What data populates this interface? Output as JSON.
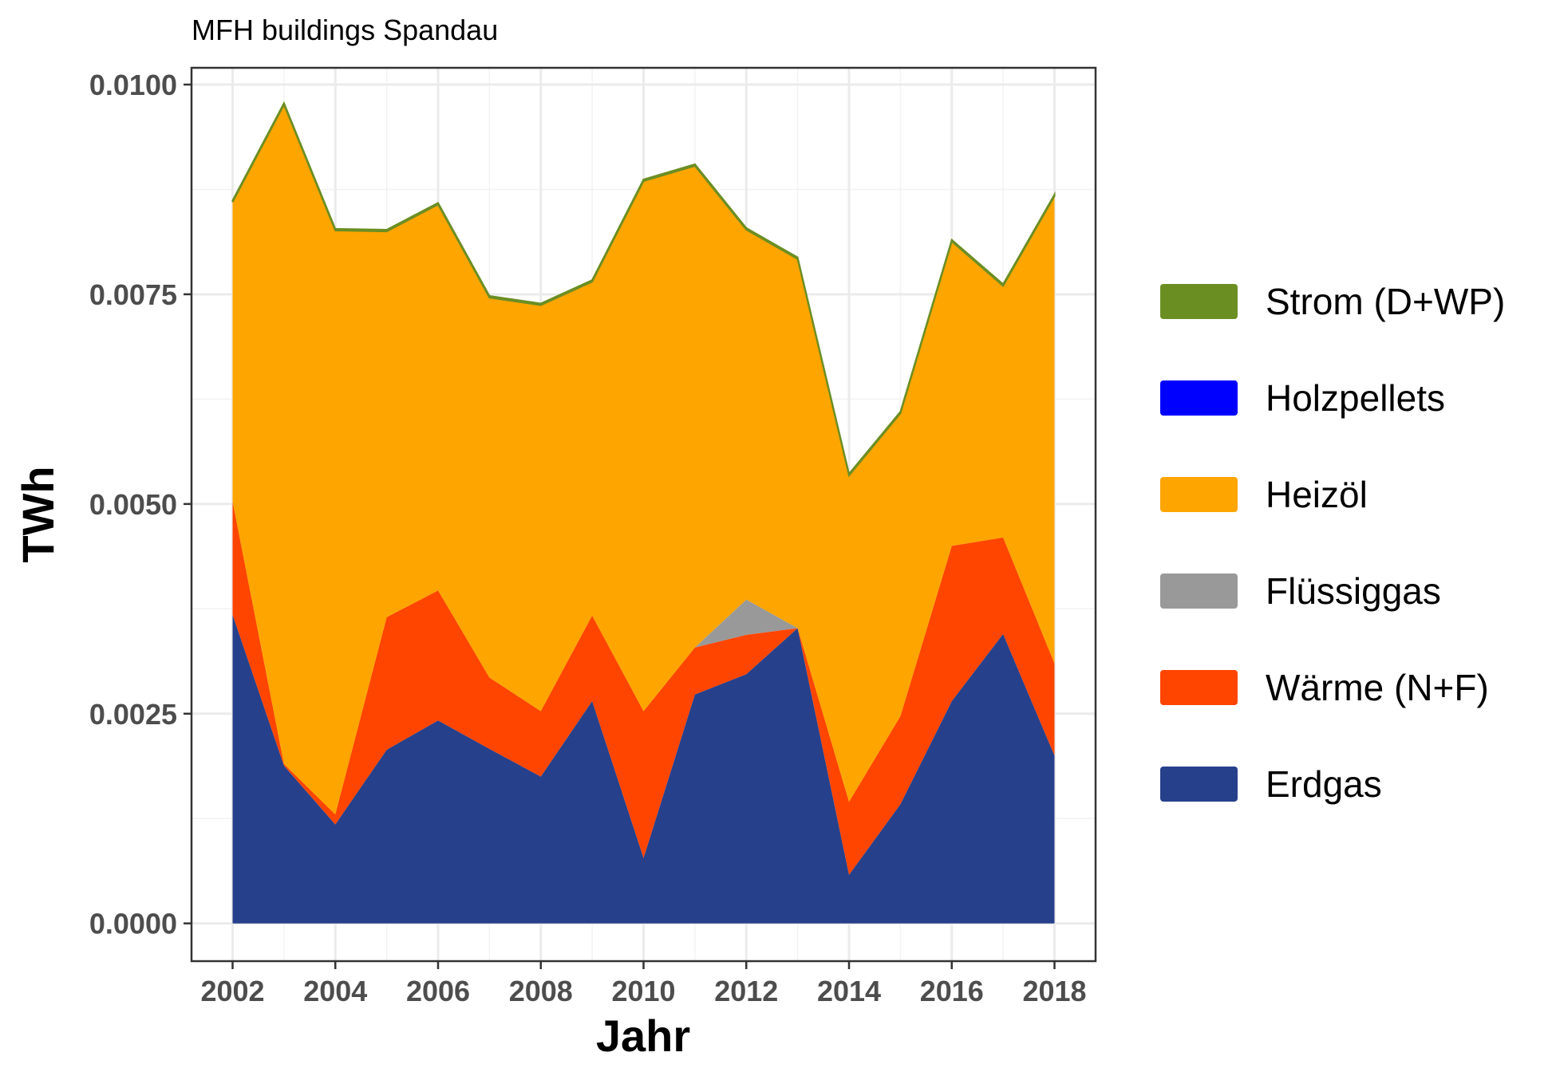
{
  "chart_data": {
    "type": "area",
    "stacked": true,
    "title": "MFH buildings Spandau",
    "xlabel": "Jahr",
    "ylabel": "TWh",
    "xlim": [
      2001.2,
      2018.8
    ],
    "ylim": [
      -0.00045,
      0.0102
    ],
    "x_ticks": [
      2002,
      2004,
      2006,
      2008,
      2010,
      2012,
      2014,
      2016,
      2018
    ],
    "x_tick_labels": [
      "2002",
      "2004",
      "2006",
      "2008",
      "2010",
      "2012",
      "2014",
      "2016",
      "2018"
    ],
    "y_ticks": [
      0,
      0.0025,
      0.005,
      0.0075,
      0.01
    ],
    "y_tick_labels": [
      "0.0000",
      "0.0025",
      "0.0050",
      "0.0075",
      "0.0100"
    ],
    "grid": true,
    "legend_position": "right",
    "x": [
      2002,
      2003,
      2004,
      2005,
      2006,
      2007,
      2008,
      2009,
      2010,
      2011,
      2012,
      2013,
      2014,
      2015,
      2016,
      2017,
      2018
    ],
    "series": [
      {
        "name": "Erdgas",
        "color": "#27408B",
        "values": [
          0.00368,
          0.00188,
          0.00118,
          0.00207,
          0.00242,
          0.00208,
          0.00175,
          0.00265,
          0.00078,
          0.00273,
          0.00297,
          0.00352,
          0.00058,
          0.00142,
          0.00265,
          0.00345,
          0.002
        ]
      },
      {
        "name": "Wärme (N+F)",
        "color": "#FF4500",
        "values": [
          0.00135,
          2e-05,
          0.00012,
          0.00158,
          0.00155,
          0.00085,
          0.00078,
          0.00102,
          0.00175,
          0.00056,
          0.00047,
          0.0,
          0.00087,
          0.00105,
          0.00185,
          0.00115,
          0.0011
        ]
      },
      {
        "name": "Flüssiggas",
        "color": "#999999",
        "values": [
          0,
          0,
          0,
          0,
          0,
          0,
          0,
          0,
          0,
          0,
          0.00042,
          0,
          0,
          0,
          0,
          0,
          0
        ]
      },
      {
        "name": "Heizöl",
        "color": "#FFA500",
        "values": [
          0.00357,
          0.00786,
          0.00696,
          0.0046,
          0.0046,
          0.00453,
          0.00484,
          0.00398,
          0.00632,
          0.00574,
          0.00441,
          0.0044,
          0.00389,
          0.00361,
          0.00363,
          0.003,
          0.00557
        ]
      },
      {
        "name": "Holzpellets",
        "color": "#0000FF",
        "values": [
          0,
          0,
          0,
          0,
          0,
          0,
          0,
          0,
          0,
          0,
          0,
          0,
          0,
          0,
          0,
          0,
          0
        ]
      },
      {
        "name": "Strom (D+WP)",
        "color": "#6B8E23",
        "values": [
          2e-05,
          2e-05,
          2e-05,
          2e-05,
          2e-05,
          2e-05,
          2e-05,
          2e-05,
          2e-05,
          2e-05,
          2e-05,
          2e-05,
          2e-05,
          2e-05,
          2e-05,
          2e-05,
          2e-05
        ]
      }
    ],
    "legend_order": [
      "Strom (D+WP)",
      "Holzpellets",
      "Heizöl",
      "Flüssiggas",
      "Wärme (N+F)",
      "Erdgas"
    ]
  }
}
